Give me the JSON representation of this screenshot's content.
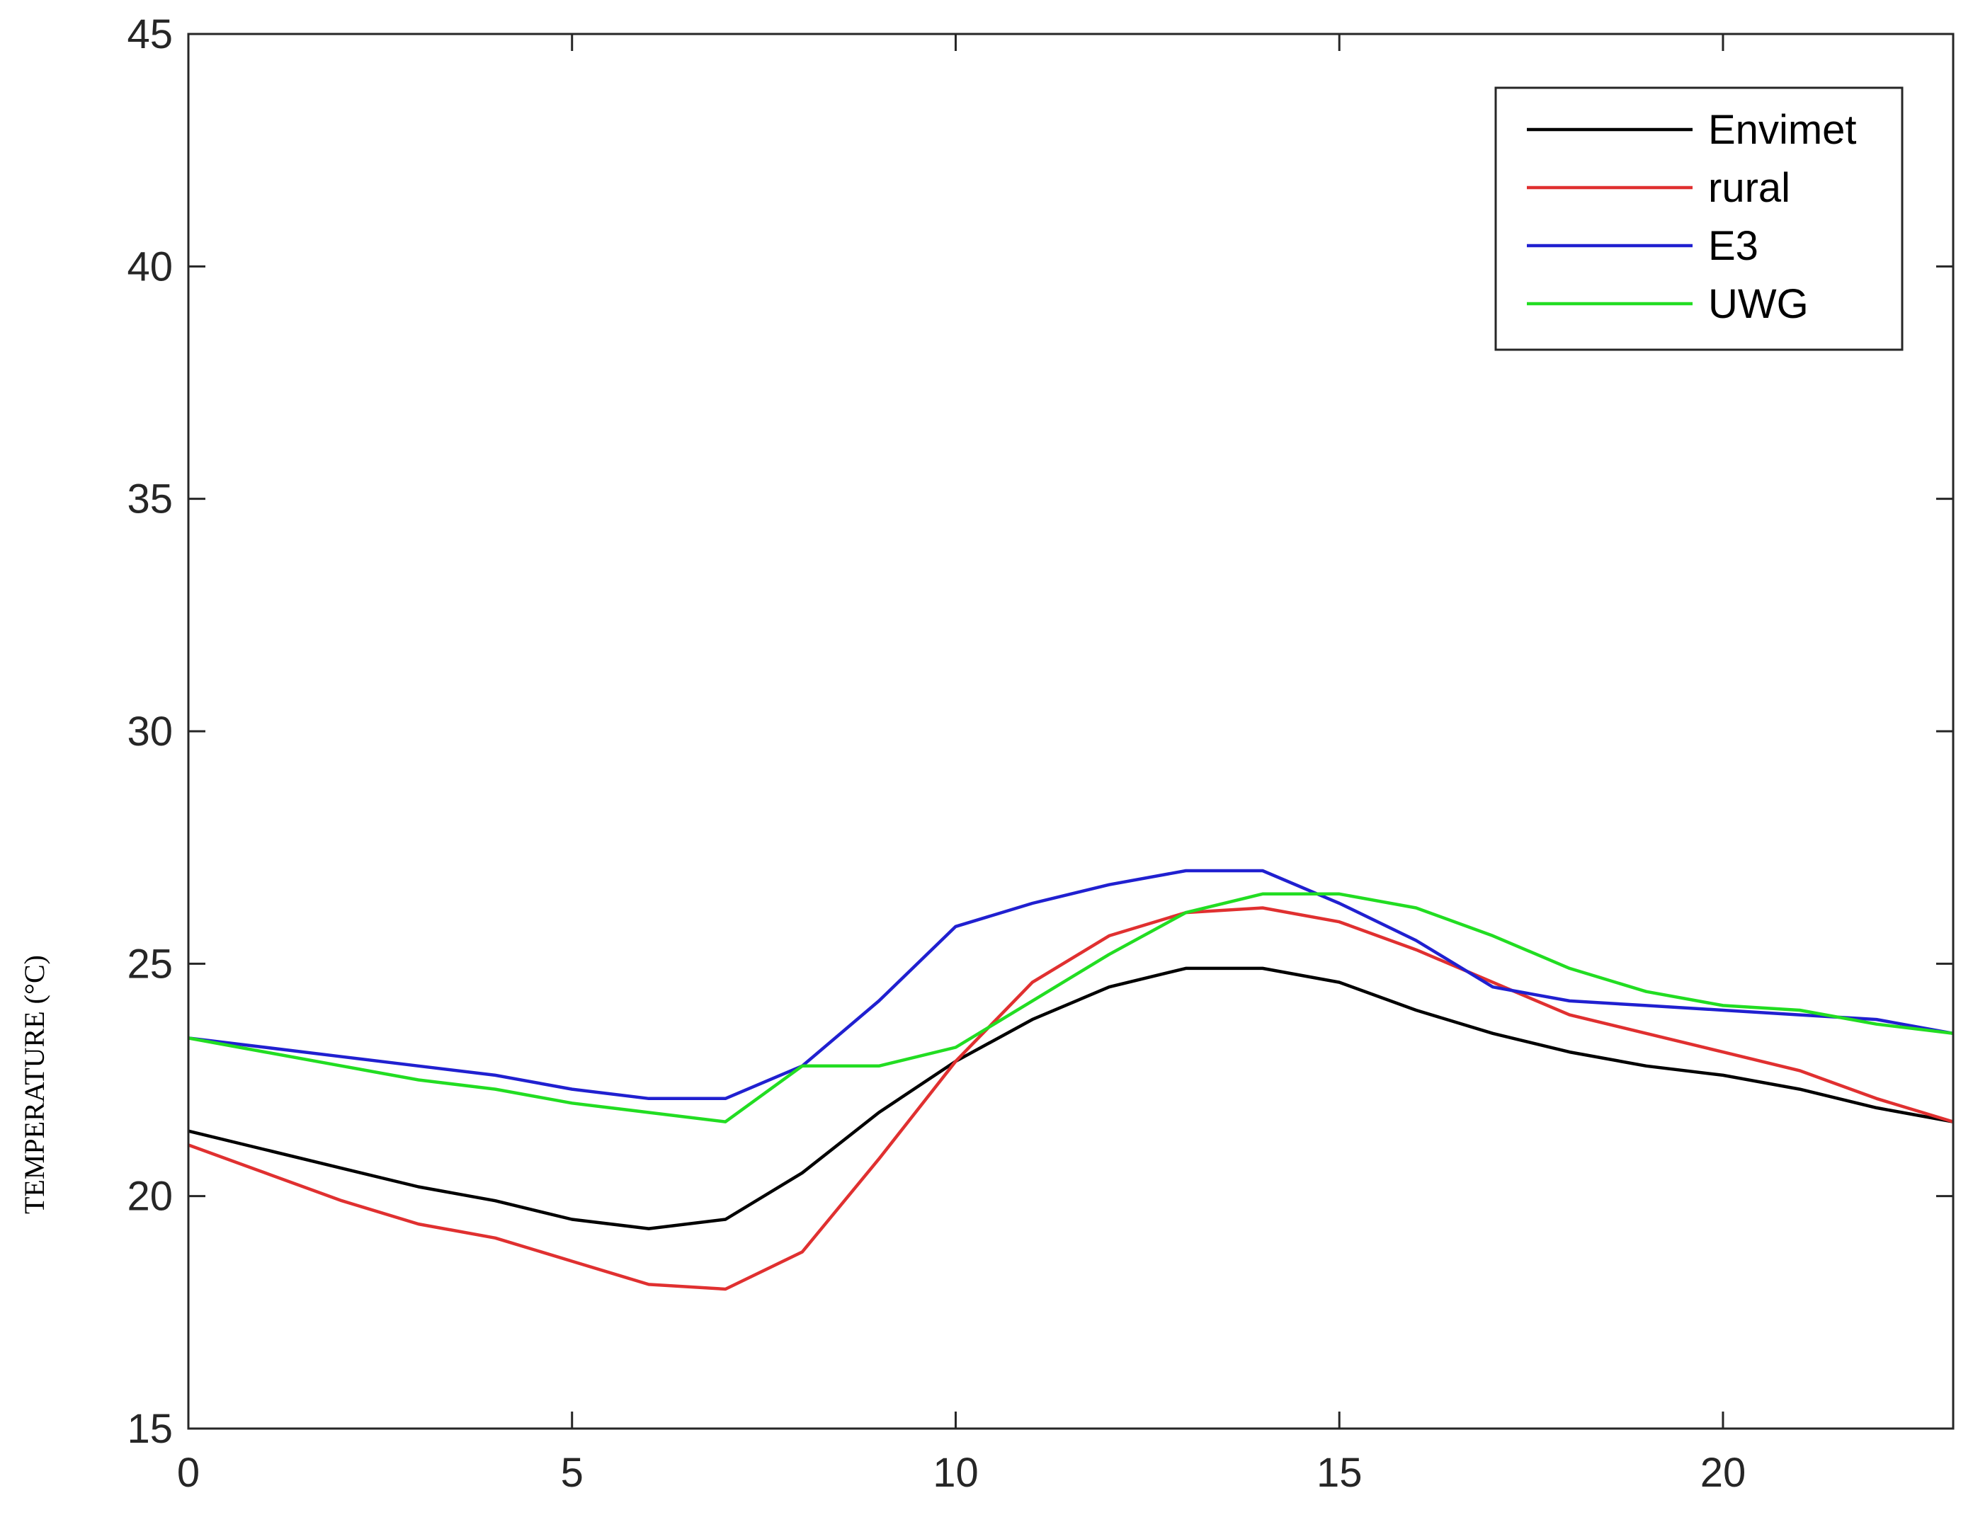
{
  "chart_data": {
    "type": "line",
    "title": "",
    "xlabel": "",
    "ylabel": "TEMPERATURE (°C)",
    "xlim": [
      0,
      23
    ],
    "ylim": [
      15,
      45
    ],
    "xticks": [
      0,
      5,
      10,
      15,
      20
    ],
    "xtick_labels": [
      "0",
      "5",
      "10",
      "15",
      "20"
    ],
    "yticks": [
      15,
      20,
      25,
      30,
      35,
      40,
      45
    ],
    "ytick_labels": [
      "15",
      "20",
      "25",
      "30",
      "35",
      "40",
      "45"
    ],
    "grid": false,
    "legend_position": "top-right",
    "x": [
      0,
      1,
      2,
      3,
      4,
      5,
      6,
      7,
      8,
      9,
      10,
      11,
      12,
      13,
      14,
      15,
      16,
      17,
      18,
      19,
      20,
      21,
      22,
      23
    ],
    "series": [
      {
        "name": "Envimet",
        "color": "#000000",
        "values": [
          21.4,
          21.0,
          20.6,
          20.2,
          19.9,
          19.5,
          19.3,
          19.5,
          20.5,
          21.8,
          22.9,
          23.8,
          24.5,
          24.9,
          24.9,
          24.6,
          24.0,
          23.5,
          23.1,
          22.8,
          22.6,
          22.3,
          21.9,
          21.6
        ]
      },
      {
        "name": "rural",
        "color": "#e03030",
        "values": [
          21.1,
          20.5,
          19.9,
          19.4,
          19.1,
          18.6,
          18.1,
          18.0,
          18.8,
          20.8,
          22.9,
          24.6,
          25.6,
          26.1,
          26.2,
          25.9,
          25.3,
          24.6,
          23.9,
          23.5,
          23.1,
          22.7,
          22.1,
          21.6
        ]
      },
      {
        "name": "E3",
        "color": "#2020d0",
        "values": [
          23.4,
          23.2,
          23.0,
          22.8,
          22.6,
          22.3,
          22.1,
          22.1,
          22.8,
          24.2,
          25.8,
          26.3,
          26.7,
          27.0,
          27.0,
          26.3,
          25.5,
          24.5,
          24.2,
          24.1,
          24.0,
          23.9,
          23.8,
          23.5
        ]
      },
      {
        "name": "UWG",
        "color": "#22dd22",
        "values": [
          23.4,
          23.1,
          22.8,
          22.5,
          22.3,
          22.0,
          21.8,
          21.6,
          22.8,
          22.8,
          23.2,
          24.2,
          25.2,
          26.1,
          26.5,
          26.5,
          26.2,
          25.6,
          24.9,
          24.4,
          24.1,
          24.0,
          23.7,
          23.5
        ]
      }
    ]
  }
}
